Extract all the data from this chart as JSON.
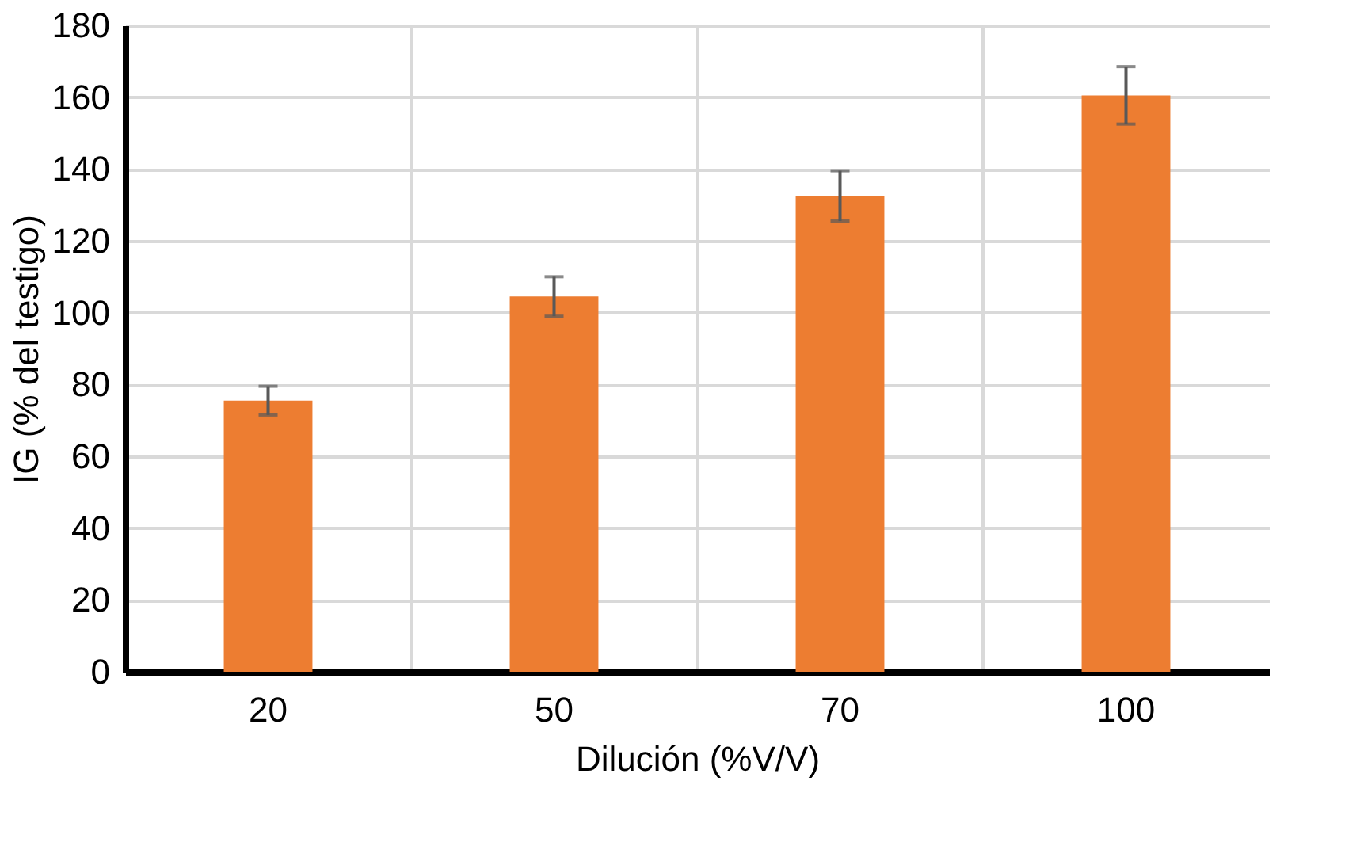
{
  "chart_data": {
    "type": "bar",
    "xlabel": "Dilución (%V/V)",
    "ylabel": "IG (% del testigo)",
    "categories": [
      "20",
      "50",
      "70",
      "100"
    ],
    "values": [
      75.5,
      104.5,
      132.5,
      160.5
    ],
    "color": "#ed7d31",
    "errors": [
      4,
      5.5,
      7,
      8
    ],
    "ylim": [
      0,
      180
    ],
    "yticks": [
      0,
      20,
      40,
      60,
      80,
      100,
      120,
      140,
      160,
      180
    ],
    "grid": true
  }
}
